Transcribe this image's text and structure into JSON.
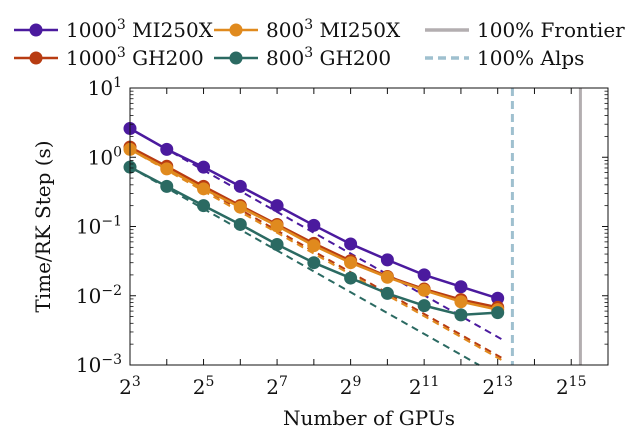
{
  "chart_data": {
    "type": "line",
    "title": "",
    "xlabel": "Number of GPUs",
    "ylabel": "Time/RK Step (s)",
    "x_scale": "log2",
    "y_scale": "log10",
    "xlim_log2": [
      3,
      16
    ],
    "ylim": [
      0.001,
      10
    ],
    "x_ticks": [
      {
        "exp": 3,
        "base": "2",
        "sup": "3"
      },
      {
        "exp": 5,
        "base": "2",
        "sup": "5"
      },
      {
        "exp": 7,
        "base": "2",
        "sup": "7"
      },
      {
        "exp": 9,
        "base": "2",
        "sup": "9"
      },
      {
        "exp": 11,
        "base": "2",
        "sup": "11"
      },
      {
        "exp": 13,
        "base": "2",
        "sup": "13"
      },
      {
        "exp": 15,
        "base": "2",
        "sup": "15"
      }
    ],
    "y_ticks": [
      {
        "value": 10,
        "mant": "10",
        "sup": "1"
      },
      {
        "value": 1,
        "mant": "10",
        "sup": "0"
      },
      {
        "value": 0.1,
        "mant": "10",
        "sup": "−1"
      },
      {
        "value": 0.01,
        "mant": "10",
        "sup": "−2"
      },
      {
        "value": 0.001,
        "mant": "10",
        "sup": "−3"
      }
    ],
    "gpus_log2": [
      3,
      4,
      5,
      6,
      7,
      8,
      9,
      10,
      11,
      12,
      13
    ],
    "series": [
      {
        "name": "1000³ MI250X",
        "label_base": "1000",
        "label_sup": "3",
        "label_rest": "MI250X",
        "color": "#4b1a9e",
        "values": [
          2.6,
          1.3,
          0.72,
          0.38,
          0.2,
          0.104,
          0.056,
          0.033,
          0.02,
          0.0135,
          0.0092
        ]
      },
      {
        "name": "1000³ GH200",
        "label_base": "1000",
        "label_sup": "3",
        "label_rest": "GH200",
        "color": "#b83c12",
        "values": [
          1.4,
          0.74,
          0.38,
          0.2,
          0.107,
          0.057,
          0.032,
          0.019,
          0.0125,
          0.0088,
          0.0068
        ]
      },
      {
        "name": "800³ MI250X",
        "label_base": "800",
        "label_sup": "3",
        "label_rest": "MI250X",
        "color": "#e08a1e",
        "values": [
          1.3,
          0.68,
          0.35,
          0.19,
          0.102,
          0.053,
          0.03,
          0.0185,
          0.012,
          0.0082,
          0.0063
        ]
      },
      {
        "name": "800³ GH200",
        "label_base": "800",
        "label_sup": "3",
        "label_rest": "GH200",
        "color": "#2b6a62",
        "values": [
          0.72,
          0.38,
          0.2,
          0.107,
          0.055,
          0.03,
          0.018,
          0.0108,
          0.0072,
          0.0053,
          0.0057
        ]
      }
    ],
    "ideal_scaling_lines": [
      {
        "series": "1000³ MI250X",
        "color": "#4b1a9e",
        "from_log2": 3,
        "to_log2": 13.1,
        "start_value": 2.6
      },
      {
        "series": "1000³ GH200",
        "color": "#b83c12",
        "from_log2": 3,
        "to_log2": 13.1,
        "start_value": 1.4
      },
      {
        "series": "800³ MI250X",
        "color": "#e08a1e",
        "from_log2": 3,
        "to_log2": 13.1,
        "start_value": 1.3
      },
      {
        "series": "800³ GH200",
        "color": "#2b6a62",
        "from_log2": 3,
        "to_log2": 13.1,
        "start_value": 0.72
      }
    ],
    "reference_lines": [
      {
        "name": "100% Frontier",
        "color": "#b3aeb0",
        "style": "solid",
        "x_log2": 15.25
      },
      {
        "name": "100% Alps",
        "color": "#9fc0cf",
        "style": "dashed",
        "x_log2": 13.4
      }
    ],
    "legend": {
      "placement": "top",
      "entries": [
        {
          "label_base": "1000",
          "label_sup": "3",
          "label_rest": "MI250X",
          "color": "#4b1a9e",
          "kind": "marker"
        },
        {
          "label_base": "800",
          "label_sup": "3",
          "label_rest": "MI250X",
          "color": "#e08a1e",
          "kind": "marker"
        },
        {
          "label_base": "",
          "label_sup": "",
          "label_rest": "100% Frontier",
          "color": "#b3aeb0",
          "kind": "solid"
        },
        {
          "label_base": "1000",
          "label_sup": "3",
          "label_rest": "GH200",
          "color": "#b83c12",
          "kind": "marker"
        },
        {
          "label_base": "800",
          "label_sup": "3",
          "label_rest": "GH200",
          "color": "#2b6a62",
          "kind": "marker"
        },
        {
          "label_base": "",
          "label_sup": "",
          "label_rest": "100% Alps",
          "color": "#9fc0cf",
          "kind": "dashed"
        }
      ]
    }
  }
}
